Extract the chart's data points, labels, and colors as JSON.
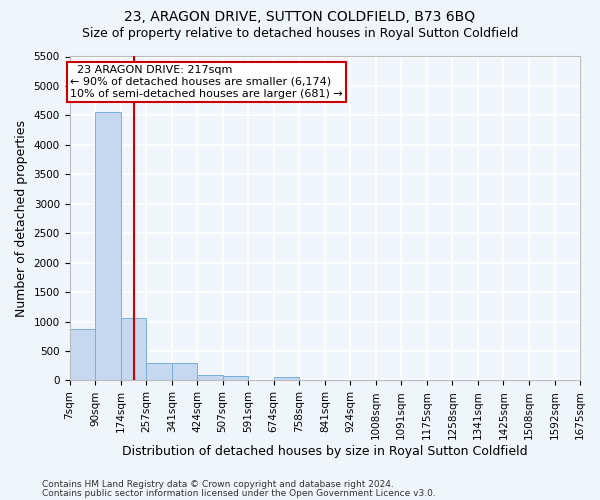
{
  "title": "23, ARAGON DRIVE, SUTTON COLDFIELD, B73 6BQ",
  "subtitle": "Size of property relative to detached houses in Royal Sutton Coldfield",
  "xlabel": "Distribution of detached houses by size in Royal Sutton Coldfield",
  "ylabel": "Number of detached properties",
  "footnote1": "Contains HM Land Registry data © Crown copyright and database right 2024.",
  "footnote2": "Contains public sector information licensed under the Open Government Licence v3.0.",
  "bar_values": [
    880,
    4560,
    1060,
    290,
    290,
    90,
    80,
    0,
    55,
    0,
    0,
    0,
    0,
    0,
    0,
    0,
    0,
    0,
    0,
    0
  ],
  "bin_edges": [
    7,
    90,
    174,
    257,
    341,
    424,
    507,
    591,
    674,
    758,
    841,
    924,
    1008,
    1091,
    1175,
    1258,
    1341,
    1425,
    1508,
    1592,
    1675
  ],
  "bar_color": "#c5d8f0",
  "bar_edge_color": "#7aafd4",
  "background_color": "#f0f4fb",
  "plot_bg_color": "#f0f4fb",
  "grid_color": "#ffffff",
  "red_line_x": 217,
  "annotation_text": "  23 ARAGON DRIVE: 217sqm  \n← 90% of detached houses are smaller (6,174)\n10% of semi-detached houses are larger (681) →",
  "annotation_box_color": "#ffffff",
  "annotation_border_color": "#cc0000",
  "property_line_color": "#cc0000",
  "ylim": [
    0,
    5500
  ],
  "yticks": [
    0,
    500,
    1000,
    1500,
    2000,
    2500,
    3000,
    3500,
    4000,
    4500,
    5000,
    5500
  ],
  "title_fontsize": 10,
  "subtitle_fontsize": 9,
  "label_fontsize": 9,
  "tick_fontsize": 7.5,
  "annotation_fontsize": 8,
  "footnote_fontsize": 6.5
}
